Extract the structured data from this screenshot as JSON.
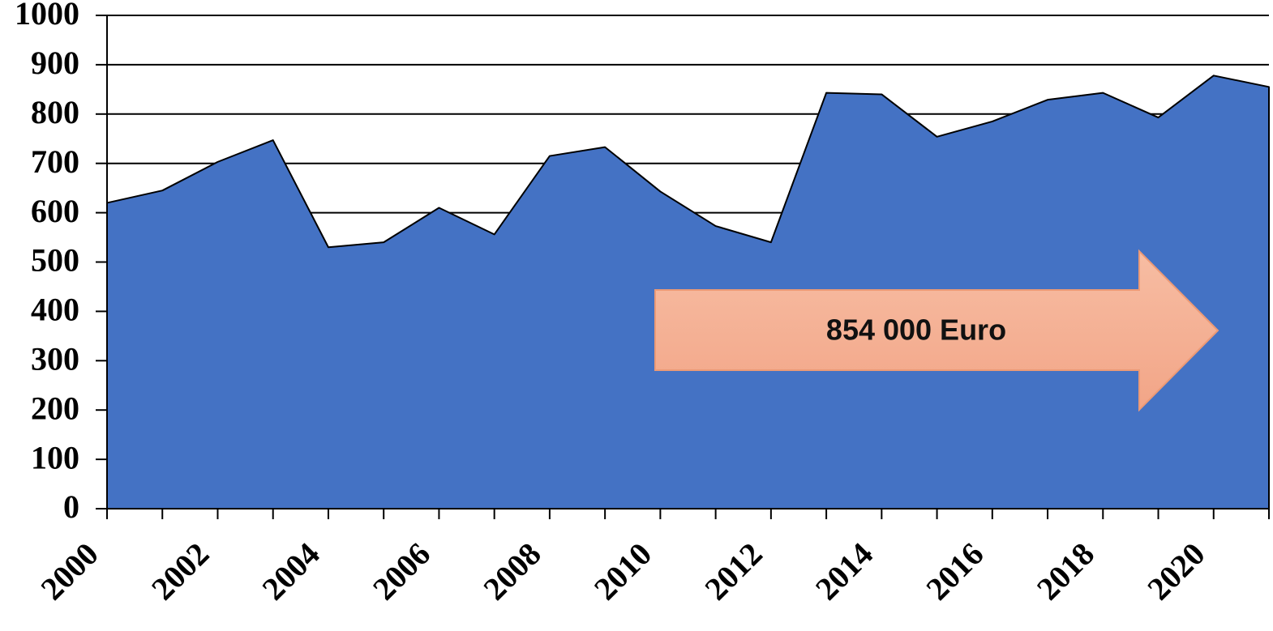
{
  "chart_data": {
    "type": "area",
    "categories": [
      "2000",
      null,
      "2002",
      null,
      "2004",
      null,
      "2006",
      null,
      "2008",
      null,
      "2010",
      null,
      "2012",
      null,
      "2014",
      null,
      "2016",
      null,
      "2018",
      null,
      "2020",
      null
    ],
    "values": [
      620,
      645,
      703,
      747,
      530,
      540,
      610,
      556,
      715,
      733,
      643,
      573,
      540,
      843,
      840,
      754,
      785,
      829,
      843,
      793,
      878,
      855
    ],
    "color": "#4472c4",
    "ylim": [
      0,
      1000
    ],
    "yticks": [
      0,
      100,
      200,
      300,
      400,
      500,
      600,
      700,
      800,
      900,
      1000
    ],
    "grid": true,
    "annotation": "854 000 Euro"
  }
}
